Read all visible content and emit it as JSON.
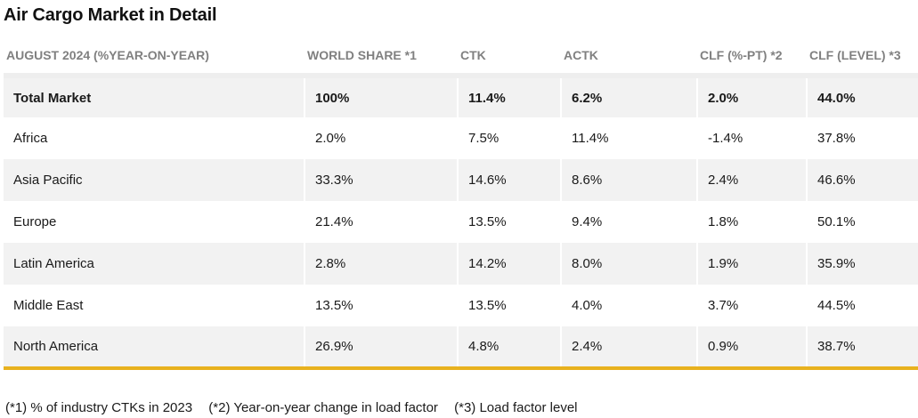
{
  "title": "Air Cargo Market in Detail",
  "headers": [
    "AUGUST 2024 (%YEAR-ON-YEAR)",
    "WORLD SHARE *1",
    "CTK",
    "ACTK",
    "CLF (%-PT) *2",
    "CLF (LEVEL) *3"
  ],
  "rows": [
    [
      "Total Market",
      "100%",
      "11.4%",
      "6.2%",
      "2.0%",
      "44.0%"
    ],
    [
      "Africa",
      "2.0%",
      "7.5%",
      "11.4%",
      "-1.4%",
      "37.8%"
    ],
    [
      "Asia Pacific",
      "33.3%",
      "14.6%",
      "8.6%",
      "2.4%",
      "46.6%"
    ],
    [
      "Europe",
      "21.4%",
      "13.5%",
      "9.4%",
      "1.8%",
      "50.1%"
    ],
    [
      "Latin America",
      "2.8%",
      "14.2%",
      "8.0%",
      "1.9%",
      "35.9%"
    ],
    [
      "Middle East",
      "13.5%",
      "13.5%",
      "4.0%",
      "3.7%",
      "44.5%"
    ],
    [
      "North America",
      "26.9%",
      "4.8%",
      "2.4%",
      "0.9%",
      "38.7%"
    ]
  ],
  "footnotes": [
    "(*1) % of industry CTKs in 2023",
    "(*2) Year-on-year change in load factor",
    "(*3) Load factor level"
  ],
  "colors": {
    "accent_rule": "#e8b11e",
    "row_shade": "#f2f2f2",
    "header_text": "#808080"
  }
}
